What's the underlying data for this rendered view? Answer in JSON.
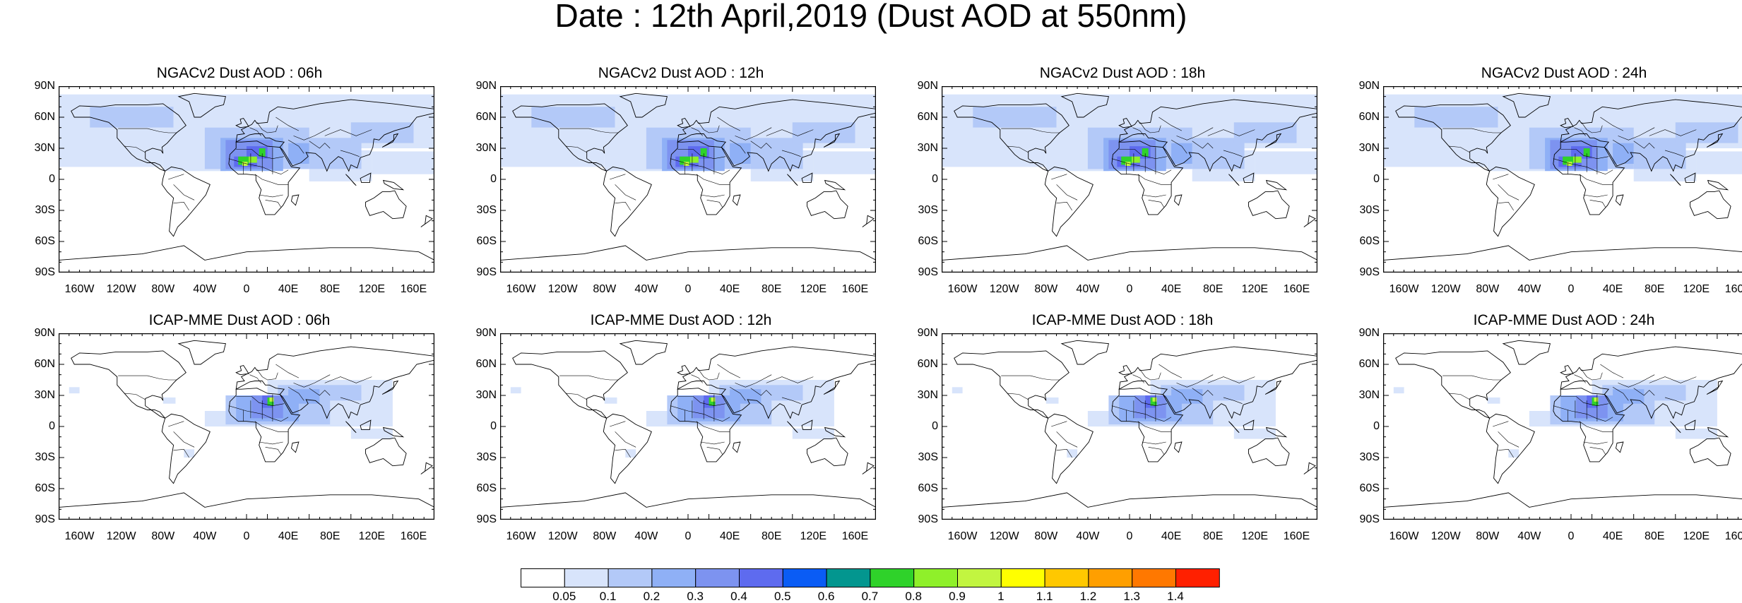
{
  "title": "Date : 12th April,2019 (Dust AOD at 550nm)",
  "lat_labels": [
    "90N",
    "60N",
    "30N",
    "0",
    "30S",
    "60S",
    "90S"
  ],
  "lon_labels": [
    "160W",
    "120W",
    "80W",
    "40W",
    "0",
    "40E",
    "80E",
    "120E",
    "160E"
  ],
  "panels": [
    {
      "title": "NGACv2 Dust AOD : 06h",
      "model": "NGACv2",
      "hour": "06h"
    },
    {
      "title": "NGACv2 Dust AOD : 12h",
      "model": "NGACv2",
      "hour": "12h"
    },
    {
      "title": "NGACv2 Dust AOD : 18h",
      "model": "NGACv2",
      "hour": "18h"
    },
    {
      "title": "NGACv2 Dust AOD : 24h",
      "model": "NGACv2",
      "hour": "24h"
    },
    {
      "title": "ICAP-MME Dust AOD : 06h",
      "model": "ICAP-MME",
      "hour": "06h"
    },
    {
      "title": "ICAP-MME Dust AOD : 12h",
      "model": "ICAP-MME",
      "hour": "12h"
    },
    {
      "title": "ICAP-MME Dust AOD : 18h",
      "model": "ICAP-MME",
      "hour": "18h"
    },
    {
      "title": "ICAP-MME Dust AOD : 24h",
      "model": "ICAP-MME",
      "hour": "24h"
    }
  ],
  "colorbar": {
    "labels": [
      "0.05",
      "0.1",
      "0.2",
      "0.3",
      "0.4",
      "0.5",
      "0.6",
      "0.7",
      "0.8",
      "0.9",
      "1",
      "1.1",
      "1.2",
      "1.3",
      "1.4"
    ],
    "colors": [
      "#ffffff",
      "#d8e4fb",
      "#b3c9f8",
      "#8fb0f6",
      "#7d93f0",
      "#5e6bef",
      "#0a5cf5",
      "#03968f",
      "#2fd22a",
      "#8ff02a",
      "#c2f540",
      "#ffff00",
      "#ffc800",
      "#ff9f00",
      "#ff7800",
      "#ff2000"
    ]
  }
}
